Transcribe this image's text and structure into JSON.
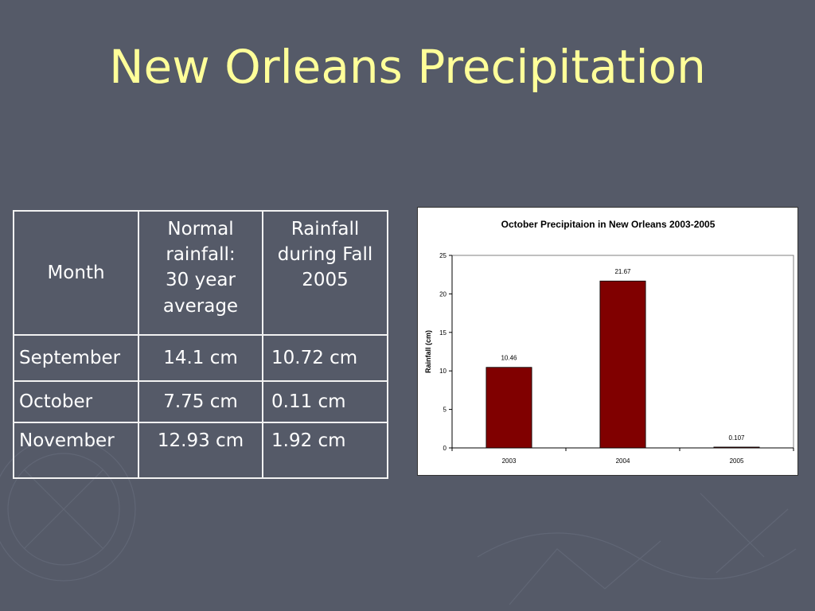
{
  "slide": {
    "title": "New Orleans Precipitation",
    "title_color": "#ffff99",
    "background_color": "#555a68"
  },
  "table": {
    "headers": {
      "month": "Month",
      "normal": [
        "Normal",
        "rainfall:",
        "30 year",
        "average"
      ],
      "fall": [
        "Rainfall",
        "during Fall",
        "2005"
      ]
    },
    "rows": [
      {
        "month": "September",
        "normal": "14.1 cm",
        "fall": "10.72 cm"
      },
      {
        "month": "October",
        "normal": "7.75 cm",
        "fall": "0.11 cm"
      },
      {
        "month": "November",
        "normal": "12.93 cm",
        "fall": "1.92 cm"
      }
    ]
  },
  "chart_data": {
    "type": "bar",
    "title": "October Precipitaion in New Orleans 2003-2005",
    "xlabel": "",
    "ylabel": "Rainfall (cm)",
    "categories": [
      "2003",
      "2004",
      "2005"
    ],
    "values": [
      10.46,
      21.67,
      0.107
    ],
    "data_labels": [
      "10.46",
      "21.67",
      "0.107"
    ],
    "ylim": [
      0,
      25
    ],
    "yticks": [
      0,
      5,
      10,
      15,
      20,
      25
    ],
    "grid": false,
    "legend": "none",
    "bar_color": "#800000"
  }
}
